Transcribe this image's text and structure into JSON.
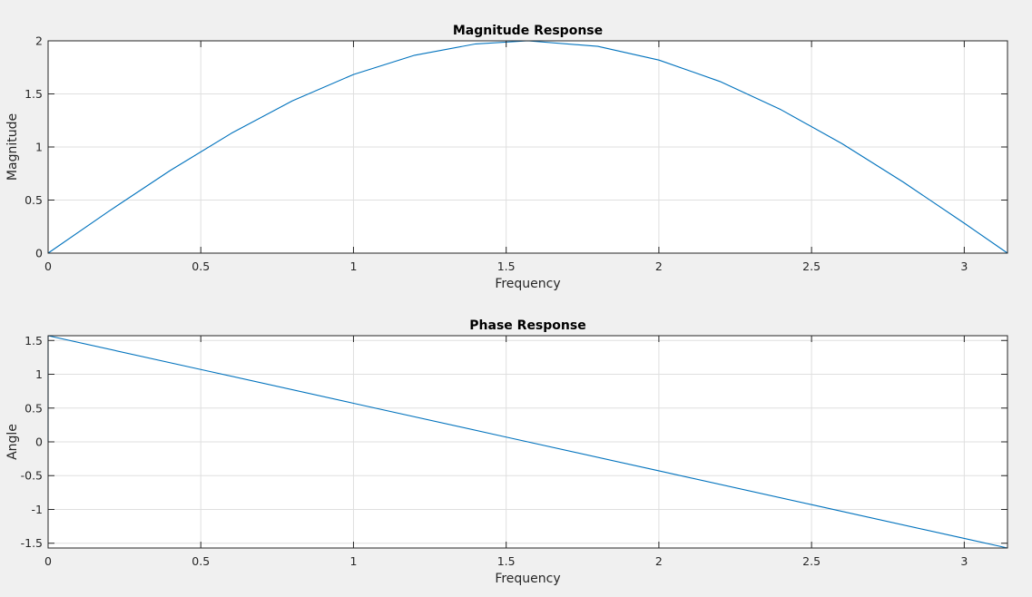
{
  "chart_data": [
    {
      "type": "line",
      "title": "Magnitude Response",
      "xlabel": "Frequency",
      "ylabel": "Magnitude",
      "xlim": [
        0,
        3.1416
      ],
      "ylim": [
        0,
        2
      ],
      "xticks": [
        "0",
        "0.5",
        "1",
        "1.5",
        "2",
        "2.5",
        "3"
      ],
      "xtick_values": [
        0,
        0.5,
        1,
        1.5,
        2,
        2.5,
        3
      ],
      "yticks": [
        "0",
        "0.5",
        "1",
        "1.5",
        "2"
      ],
      "ytick_values": [
        0,
        0.5,
        1,
        1.5,
        2
      ],
      "grid": true,
      "line_color": "#0072bd",
      "series": [
        {
          "x": [
            0,
            0.2,
            0.4,
            0.6,
            0.8,
            1.0,
            1.2,
            1.4,
            1.5708,
            1.8,
            2.0,
            2.2,
            2.4,
            2.6,
            2.8,
            3.0,
            3.1416
          ],
          "y": [
            0,
            0.397,
            0.779,
            1.129,
            1.435,
            1.683,
            1.864,
            1.971,
            2.0,
            1.948,
            1.819,
            1.617,
            1.351,
            1.031,
            0.67,
            0.282,
            0
          ]
        }
      ]
    },
    {
      "type": "line",
      "title": "Phase Response",
      "xlabel": "Frequency",
      "ylabel": "Angle",
      "xlim": [
        0,
        3.1416
      ],
      "ylim": [
        -1.5708,
        1.5708
      ],
      "xticks": [
        "0",
        "0.5",
        "1",
        "1.5",
        "2",
        "2.5",
        "3"
      ],
      "xtick_values": [
        0,
        0.5,
        1,
        1.5,
        2,
        2.5,
        3
      ],
      "yticks": [
        "-1.5",
        "-1",
        "-0.5",
        "0",
        "0.5",
        "1",
        "1.5"
      ],
      "ytick_values": [
        -1.5,
        -1,
        -0.5,
        0,
        0.5,
        1,
        1.5
      ],
      "grid": true,
      "line_color": "#0072bd",
      "series": [
        {
          "x": [
            0,
            0,
            0.5,
            1.0,
            1.5,
            2.0,
            2.5,
            3.0,
            3.1416
          ],
          "y": [
            0,
            1.5708,
            1.0708,
            0.5708,
            0.0708,
            -0.4292,
            -0.9292,
            -1.4292,
            -1.5708
          ]
        }
      ]
    }
  ]
}
